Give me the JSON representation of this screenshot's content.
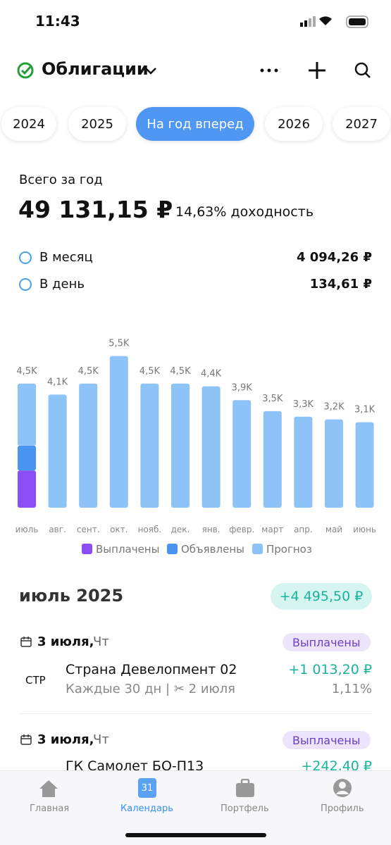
{
  "status_bar": {
    "time": "11:43"
  },
  "header": {
    "title": "Облигации"
  },
  "tabs": [
    "2024",
    "2025",
    "На год вперед",
    "2026",
    "2027"
  ],
  "summary": {
    "label": "Всего за год",
    "total": "49 131,15 ₽",
    "yield": "14,63% доходность",
    "rows": [
      {
        "label": "В месяц",
        "value": "4 094,26 ₽"
      },
      {
        "label": "В день",
        "value": "134,61 ₽"
      }
    ]
  },
  "chart_data": {
    "type": "stacked_bar",
    "categories": [
      "июль",
      "авг.",
      "сент.",
      "окт.",
      "нояб.",
      "дек.",
      "янв.",
      "февр.",
      "март",
      "апр.",
      "май",
      "июнь"
    ],
    "series": [
      {
        "name": "Выплачены",
        "color": "#8b4ef5",
        "values": [
          1350,
          null,
          null,
          null,
          null,
          null,
          null,
          null,
          null,
          null,
          null,
          null
        ]
      },
      {
        "name": "Объявлены",
        "color": "#4b93f0",
        "values": [
          900,
          null,
          null,
          null,
          null,
          null,
          null,
          null,
          null,
          null,
          null,
          null
        ]
      },
      {
        "name": "Прогноз",
        "color": "#8ec3f8",
        "values": [
          2250,
          4100,
          4500,
          5500,
          4500,
          4500,
          4400,
          3900,
          3500,
          3300,
          3200,
          3100
        ]
      }
    ],
    "totals": [
      4500,
      4100,
      4500,
      5500,
      4500,
      4500,
      4400,
      3900,
      3500,
      3300,
      3200,
      3100
    ],
    "total_labels": [
      "4,5K",
      "4,1K",
      "4,5K",
      "5,5K",
      "4,5K",
      "4,5K",
      "4,4K",
      "3,9K",
      "3,5K",
      "3,3K",
      "3,2K",
      "3,1K"
    ],
    "ylim": [
      0,
      6000
    ]
  },
  "month": {
    "title": "июль 2025",
    "badge": "+4 495,50 ₽"
  },
  "payments": [
    {
      "date": "3 июля,",
      "weekday": "Чт",
      "status": "Выплачены",
      "ticker": "СТР",
      "name": "Страна Девелопмент 02",
      "period": "Каждые 30 дн",
      "cut": "2 июля",
      "amount": "+1 013,20 ₽",
      "percent": "1,11%"
    },
    {
      "date": "3 июля,",
      "weekday": "Чт",
      "status": "Выплачены",
      "name": "ГК Самолет БО-П13",
      "amount": "+242,40 ₽"
    }
  ],
  "nav": {
    "calendar_day": "31",
    "items": [
      "Главная",
      "Календарь",
      "Портфель",
      "Профиль"
    ]
  }
}
